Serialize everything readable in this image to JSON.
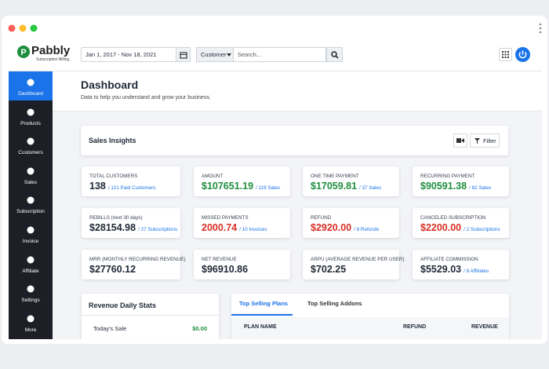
{
  "header": {
    "logo": "Pabbly",
    "logo_subtitle": "Subscription Billing",
    "date_range": "Jan 1, 2017 - Nov 18, 2021",
    "search_filter": "Customer",
    "search_placeholder": "Search..."
  },
  "sidebar": [
    "Dashboard",
    "Products",
    "Customers",
    "Sales",
    "Subscription",
    "Invoice",
    "Affiliate",
    "Settings",
    "More"
  ],
  "page": {
    "title": "Dashboard",
    "subtitle": "Data to help you understand and grow your business."
  },
  "insights": {
    "title": "Sales Insights",
    "filter": "Filter"
  },
  "cards": [
    {
      "label": "TOTAL CUSTOMERS",
      "value": "138",
      "note": "/ 121 Paid Customers",
      "color": "#1f2937"
    },
    {
      "label": "AMOUNT",
      "value": "$107651.19",
      "note": "/ 119 Sales",
      "color": "#1e8e3e"
    },
    {
      "label": "ONE TIME PAYMENT",
      "value": "$17059.81",
      "note": "/ 37 Sales",
      "color": "#1e8e3e"
    },
    {
      "label": "RECURRING PAYMENT",
      "value": "$90591.38",
      "note": "/ 82 Sales",
      "color": "#1e8e3e"
    },
    {
      "label": "REBILLS (next 30 days)",
      "value": "$28154.98",
      "note": "/ 27 Subscriptions",
      "color": "#1f2937"
    },
    {
      "label": "MISSED PAYMENTS",
      "value": "2000.74",
      "note": "/ 10 Invoices",
      "color": "#d93025"
    },
    {
      "label": "REFUND",
      "value": "$2920.00",
      "note": "/ 8 Refunds",
      "color": "#d93025"
    },
    {
      "label": "CANCELED SUBSCRIPTION",
      "value": "$2200.00",
      "note": "/ 2 Subscriptions",
      "color": "#d93025"
    },
    {
      "label": "MRR (MONTHLY RECURRING REVENUE)",
      "value": "$27760.12",
      "color": "#1f2937"
    },
    {
      "label": "NET REVENUE",
      "value": "$96910.86",
      "color": "#1f2937"
    },
    {
      "label": "ARPU (AVERAGE REVENUE PER USER)",
      "value": "$702.25",
      "color": "#1f2937"
    },
    {
      "label": "AFFILIATE COMMISSION",
      "value": "$5529.03",
      "note": "/ 8 Affiliates",
      "color": "#1f2937"
    }
  ],
  "revenue_stats": {
    "title": "Revenue Daily Stats",
    "rows": [
      {
        "label": "Today's Sale",
        "value": "$0.00"
      }
    ]
  },
  "top_selling": {
    "tabs": [
      "Top Selling Plans",
      "Top Selling Addons"
    ],
    "columns": [
      "PLAN NAME",
      "REFUND",
      "REVENUE"
    ]
  }
}
